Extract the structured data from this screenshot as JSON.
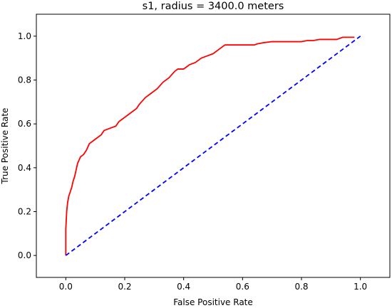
{
  "chart_data": {
    "type": "line",
    "title": "s1, radius = 3400.0 meters",
    "xlabel": "False Positive Rate",
    "ylabel": "True Positive Rate",
    "xlim": [
      -0.1,
      1.1
    ],
    "ylim": [
      -0.1,
      1.1
    ],
    "xticks": [
      0.0,
      0.2,
      0.4,
      0.6,
      0.8,
      1.0
    ],
    "xtick_labels": [
      "0.0",
      "0.2",
      "0.4",
      "0.6",
      "0.8",
      "1.0"
    ],
    "yticks": [
      0.0,
      0.2,
      0.4,
      0.6,
      0.8,
      1.0
    ],
    "ytick_labels": [
      "0.0",
      "0.2",
      "0.4",
      "0.6",
      "0.8",
      "1.0"
    ],
    "grid": false,
    "series": [
      {
        "color": "#ff0000",
        "style": "solid",
        "x": [
          0.0,
          0.0,
          0.003,
          0.006,
          0.01,
          0.015,
          0.02,
          0.025,
          0.03,
          0.04,
          0.05,
          0.06,
          0.07,
          0.08,
          0.1,
          0.12,
          0.13,
          0.15,
          0.17,
          0.18,
          0.19,
          0.2,
          0.22,
          0.24,
          0.25,
          0.27,
          0.29,
          0.31,
          0.33,
          0.35,
          0.37,
          0.38,
          0.4,
          0.41,
          0.42,
          0.44,
          0.46,
          0.48,
          0.5,
          0.52,
          0.54,
          0.56,
          0.6,
          0.64,
          0.65,
          0.67,
          0.7,
          0.75,
          0.8,
          0.82,
          0.84,
          0.86,
          0.9,
          0.92,
          0.94,
          0.96,
          0.98
        ],
        "y": [
          0.0,
          0.12,
          0.2,
          0.24,
          0.27,
          0.29,
          0.31,
          0.34,
          0.36,
          0.42,
          0.45,
          0.46,
          0.48,
          0.51,
          0.53,
          0.55,
          0.57,
          0.58,
          0.59,
          0.61,
          0.62,
          0.63,
          0.65,
          0.67,
          0.69,
          0.72,
          0.74,
          0.76,
          0.79,
          0.81,
          0.84,
          0.85,
          0.85,
          0.86,
          0.87,
          0.88,
          0.9,
          0.91,
          0.92,
          0.94,
          0.96,
          0.96,
          0.96,
          0.96,
          0.965,
          0.97,
          0.975,
          0.975,
          0.975,
          0.98,
          0.98,
          0.985,
          0.985,
          0.985,
          0.995,
          0.995,
          0.995
        ]
      },
      {
        "color": "#0000ff",
        "style": "dashed",
        "x": [
          0.0,
          1.0
        ],
        "y": [
          0.0,
          1.0
        ]
      }
    ]
  }
}
